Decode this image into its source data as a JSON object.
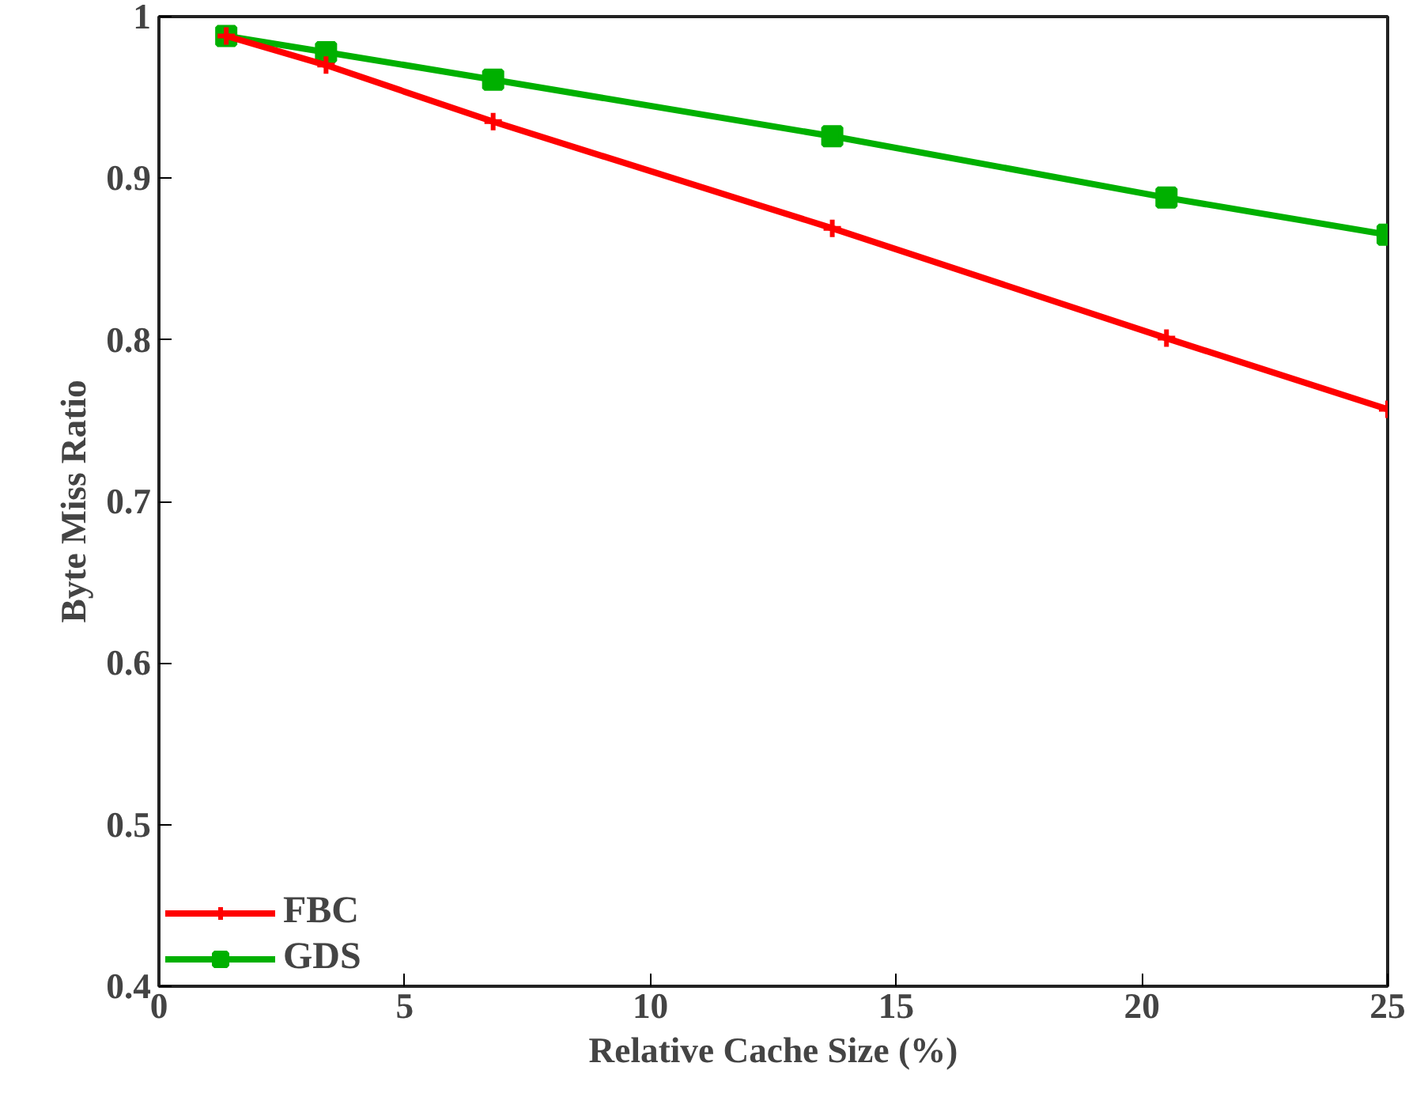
{
  "chart_data": {
    "type": "line",
    "xlabel": "Relative Cache Size (%)",
    "ylabel": "Byte Miss Ratio",
    "xlim": [
      0,
      25
    ],
    "ylim": [
      0.4,
      1
    ],
    "xticks": [
      0,
      5,
      10,
      15,
      20,
      25
    ],
    "yticks": [
      0.4,
      0.5,
      0.6,
      0.7,
      0.8,
      0.9,
      1
    ],
    "grid": false,
    "legend": "bottom left",
    "line_style": "solid",
    "series": [
      {
        "name": "FBC",
        "color": "#ff0000",
        "marker": "cross",
        "x": [
          1.37,
          3.4,
          6.8,
          13.7,
          20.5,
          25
        ],
        "values": [
          0.988,
          0.97,
          0.935,
          0.869,
          0.801,
          0.757
        ]
      },
      {
        "name": "GDS",
        "color": "#00b000",
        "marker": "square",
        "x": [
          1.37,
          3.4,
          6.8,
          13.7,
          20.5,
          25
        ],
        "values": [
          0.988,
          0.978,
          0.961,
          0.926,
          0.888,
          0.865
        ]
      }
    ]
  }
}
